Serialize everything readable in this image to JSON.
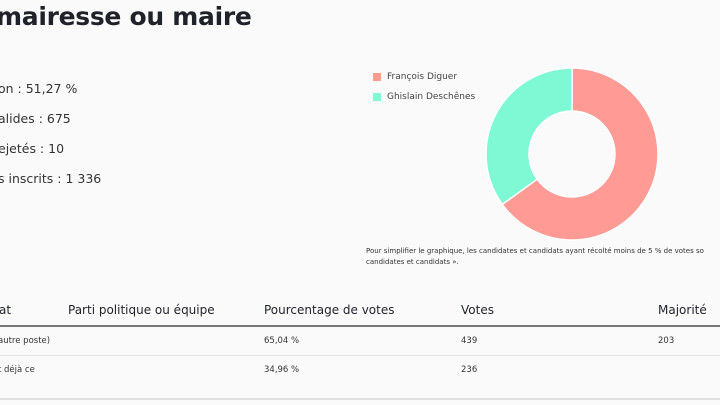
{
  "header": {
    "title": "mairesse ou maire"
  },
  "stats": [
    "on : 51,27 %",
    "alides : 675",
    "ejetés : 10",
    "s inscrits : 1 336"
  ],
  "chart_data": {
    "type": "pie",
    "donut": true,
    "categories": [
      "François Diguer",
      "Ghislain Deschênes"
    ],
    "values": [
      439,
      236
    ],
    "colors": [
      "#ff9a94",
      "#7ff9d4"
    ],
    "legend": "top-left"
  },
  "note": {
    "line1": "Pour simplifier le graphique, les candidates et candidats ayant récolté moins de 5 % de votes so",
    "line2": "candidates et candidats »."
  },
  "table": {
    "headers": [
      "at",
      "Parti politique ou équipe",
      "Pourcentage de votes",
      "Votes",
      "Majorité"
    ],
    "rows": [
      {
        "candidate": "autre poste)",
        "party": "",
        "percent": "65,04 %",
        "votes": "439",
        "majority": "203"
      },
      {
        "candidate": "t déjà ce",
        "party": "",
        "percent": "34,96 %",
        "votes": "236",
        "majority": ""
      }
    ]
  }
}
